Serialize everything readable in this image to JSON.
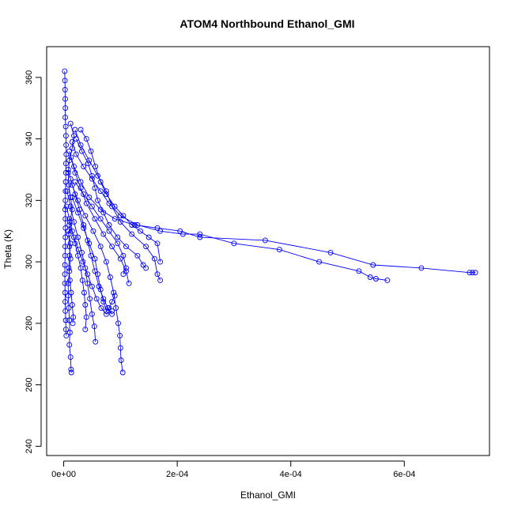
{
  "chart_data": {
    "type": "line",
    "title": "ATOM4 Northbound Ethanol_GMI",
    "xlabel": "Ethanol_GMI",
    "ylabel": "Theta (K)",
    "xlim": [
      -3e-05,
      0.00075
    ],
    "ylim": [
      237,
      370
    ],
    "x_ticks": [
      0,
      0.0002,
      0.0004,
      0.0006
    ],
    "x_tick_labels": [
      "0e+00",
      "2e-04",
      "4e-04",
      "6e-04"
    ],
    "y_ticks": [
      240,
      260,
      280,
      300,
      320,
      340,
      360
    ],
    "y_tick_labels": [
      "240",
      "260",
      "280",
      "300",
      "320",
      "340",
      "360"
    ],
    "grid": false,
    "marker": "open-circle",
    "color": "#0000ff",
    "series": [
      {
        "points": [
          [
            1.8e-06,
            362
          ],
          [
            2.2e-06,
            359
          ],
          [
            2.5e-06,
            356
          ],
          [
            2.8e-06,
            353
          ],
          [
            3e-06,
            350
          ],
          [
            2.8e-06,
            347
          ],
          [
            3.5e-06,
            344
          ],
          [
            4e-06,
            341
          ],
          [
            4.2e-06,
            338
          ],
          [
            4.5e-06,
            335
          ],
          [
            4e-06,
            332
          ],
          [
            3.8e-06,
            329
          ],
          [
            3.5e-06,
            326
          ],
          [
            3.3e-06,
            323
          ],
          [
            3e-06,
            320
          ],
          [
            2.8e-06,
            317
          ],
          [
            3e-06,
            314
          ],
          [
            3.2e-06,
            311
          ],
          [
            3e-06,
            308
          ],
          [
            2.8e-06,
            305
          ],
          [
            2.5e-06,
            302
          ],
          [
            2.2e-06,
            299
          ],
          [
            2e-06,
            296
          ],
          [
            2.2e-06,
            293
          ],
          [
            2.5e-06,
            290
          ],
          [
            2.8e-06,
            287
          ],
          [
            3e-06,
            284
          ],
          [
            3.5e-06,
            281
          ],
          [
            4e-06,
            278
          ],
          [
            4.5e-06,
            276
          ]
        ]
      },
      {
        "points": [
          [
            1.2e-05,
            345
          ],
          [
            1.8e-05,
            341
          ],
          [
            1.5e-05,
            337
          ],
          [
            1e-05,
            333
          ],
          [
            8e-06,
            329
          ],
          [
            9e-06,
            325
          ],
          [
            1.2e-05,
            321
          ],
          [
            1.5e-05,
            317
          ],
          [
            1.1e-05,
            313
          ],
          [
            9e-06,
            309
          ],
          [
            1e-05,
            305
          ],
          [
            1.2e-05,
            301
          ],
          [
            1e-05,
            297
          ],
          [
            8e-06,
            293
          ],
          [
            8e-06,
            289
          ],
          [
            9e-06,
            285
          ],
          [
            1e-05,
            281
          ],
          [
            1.1e-05,
            277
          ],
          [
            1e-05,
            273
          ],
          [
            1.2e-05,
            269
          ],
          [
            1.3e-05,
            265
          ],
          [
            1.35e-05,
            264
          ]
        ]
      },
      {
        "points": [
          [
            2e-05,
            343
          ],
          [
            3e-05,
            338
          ],
          [
            4.5e-05,
            333
          ],
          [
            6e-05,
            328
          ],
          [
            7.5e-05,
            323
          ],
          [
            8.5e-05,
            318
          ],
          [
            0.0001,
            313
          ],
          [
            0.00012,
            309
          ],
          [
            0.000145,
            305
          ],
          [
            0.00016,
            301
          ],
          [
            0.000165,
            296
          ],
          [
            0.00017,
            294
          ]
        ]
      },
      {
        "points": [
          [
            1.5e-05,
            339
          ],
          [
            2.2e-05,
            335
          ],
          [
            3.5e-05,
            331
          ],
          [
            5e-05,
            327
          ],
          [
            6.5e-05,
            323
          ],
          [
            8e-05,
            319
          ],
          [
            0.0001,
            315
          ],
          [
            0.00013,
            312
          ],
          [
            0.00017,
            310
          ],
          [
            0.00021,
            309
          ],
          [
            0.00024,
            309
          ],
          [
            0.0003,
            306
          ],
          [
            0.00038,
            304
          ],
          [
            0.00045,
            300
          ],
          [
            0.00052,
            297
          ],
          [
            0.00054,
            295
          ],
          [
            0.00055,
            294.5
          ],
          [
            0.00057,
            294
          ]
        ]
      },
      {
        "points": [
          [
            1e-05,
            336
          ],
          [
            1.8e-05,
            331
          ],
          [
            3e-05,
            326
          ],
          [
            4.5e-05,
            321
          ],
          [
            6.5e-05,
            317
          ],
          [
            9e-05,
            314
          ],
          [
            0.000125,
            312
          ],
          [
            0.000165,
            311
          ],
          [
            0.000205,
            310
          ],
          [
            0.00024,
            308
          ],
          [
            0.000355,
            307
          ],
          [
            0.00047,
            303
          ],
          [
            0.000545,
            299
          ],
          [
            0.00063,
            298
          ],
          [
            0.000715,
            296.5
          ],
          [
            0.00072,
            296.5
          ],
          [
            0.000725,
            296.5
          ]
        ]
      },
      {
        "points": [
          [
            1.3e-05,
            334
          ],
          [
            2e-05,
            329
          ],
          [
            3e-05,
            324
          ],
          [
            4e-05,
            319
          ],
          [
            5.5e-05,
            314
          ],
          [
            7e-05,
            309
          ],
          [
            8.5e-05,
            305
          ],
          [
            0.0001,
            301
          ],
          [
            0.00011,
            297
          ],
          [
            0.000115,
            293
          ]
        ]
      },
      {
        "points": [
          [
            8e-06,
            330
          ],
          [
            1.5e-05,
            325
          ],
          [
            2.5e-05,
            320
          ],
          [
            3.8e-05,
            315
          ],
          [
            5.2e-05,
            310
          ],
          [
            6.5e-05,
            305
          ],
          [
            7.5e-05,
            300
          ],
          [
            8.2e-05,
            295
          ],
          [
            8.8e-05,
            290
          ],
          [
            9.2e-05,
            285
          ],
          [
            9.6e-05,
            280
          ],
          [
            9.9e-05,
            276
          ],
          [
            0.0001,
            272
          ],
          [
            0.000101,
            268
          ],
          [
            0.000104,
            264
          ]
        ]
      },
      {
        "points": [
          [
            2.2e-05,
            340
          ],
          [
            3.2e-05,
            336
          ],
          [
            4.3e-05,
            332
          ],
          [
            5e-05,
            328
          ],
          [
            5.5e-05,
            324
          ],
          [
            6e-05,
            320
          ],
          [
            7e-05,
            316
          ],
          [
            8e-05,
            312
          ],
          [
            9.5e-05,
            308
          ],
          [
            0.00011,
            305
          ],
          [
            0.00013,
            302
          ],
          [
            0.00014,
            299
          ],
          [
            0.000145,
            298
          ]
        ]
      },
      {
        "points": [
          [
            1.2e-05,
            327
          ],
          [
            2e-05,
            322
          ],
          [
            2.8e-05,
            317
          ],
          [
            3.5e-05,
            312
          ],
          [
            4.2e-05,
            307
          ],
          [
            4.8e-05,
            302
          ],
          [
            5.5e-05,
            297
          ],
          [
            6.2e-05,
            292
          ],
          [
            7e-05,
            288
          ],
          [
            7.8e-05,
            285
          ],
          [
            8.5e-05,
            283
          ]
        ]
      },
      {
        "points": [
          [
            6e-06,
            323
          ],
          [
            1.2e-05,
            318
          ],
          [
            1.8e-05,
            313
          ],
          [
            2.5e-05,
            308
          ],
          [
            3.2e-05,
            303
          ],
          [
            3.8e-05,
            298
          ],
          [
            4.2e-05,
            293
          ],
          [
            4.6e-05,
            288
          ],
          [
            5e-05,
            283
          ],
          [
            5.4e-05,
            279
          ],
          [
            5.6e-05,
            274
          ]
        ]
      },
      {
        "points": [
          [
            3e-05,
            343
          ],
          [
            4e-05,
            340
          ],
          [
            4.8e-05,
            336
          ],
          [
            5.6e-05,
            331
          ],
          [
            6.5e-05,
            326
          ],
          [
            7.5e-05,
            322
          ],
          [
            9e-05,
            318
          ],
          [
            0.000105,
            315
          ],
          [
            0.00012,
            312
          ],
          [
            0.000135,
            310
          ],
          [
            0.00015,
            308
          ],
          [
            0.000165,
            306
          ],
          [
            0.00017,
            300
          ]
        ]
      },
      {
        "points": [
          [
            1.5e-05,
            321
          ],
          [
            2.5e-05,
            316
          ],
          [
            3.5e-05,
            311
          ],
          [
            4.5e-05,
            306
          ],
          [
            5.5e-05,
            301
          ],
          [
            6e-05,
            296
          ],
          [
            6.5e-05,
            291
          ],
          [
            7e-05,
            287
          ],
          [
            7.5e-05,
            284
          ],
          [
            8e-05,
            285
          ],
          [
            8.5e-05,
            287
          ],
          [
            9e-05,
            289
          ]
        ]
      },
      {
        "points": [
          [
            5e-06,
            318
          ],
          [
            1e-05,
            314
          ],
          [
            1.5e-05,
            310
          ],
          [
            2e-05,
            306
          ],
          [
            2.5e-05,
            302
          ],
          [
            3e-05,
            298
          ],
          [
            3.3e-05,
            294
          ],
          [
            3.6e-05,
            290
          ],
          [
            3.8e-05,
            286
          ],
          [
            4e-05,
            282
          ],
          [
            3.8e-05,
            278
          ]
        ]
      },
      {
        "points": [
          [
            2e-05,
            326
          ],
          [
            3.5e-05,
            322
          ],
          [
            5e-05,
            318
          ],
          [
            6.5e-05,
            314
          ],
          [
            8e-05,
            310
          ],
          [
            9.5e-05,
            306
          ],
          [
            0.000105,
            302
          ],
          [
            0.00011,
            298
          ],
          [
            0.000105,
            296
          ]
        ]
      },
      {
        "points": [
          [
            1e-05,
            312
          ],
          [
            1.8e-05,
            308
          ],
          [
            2.6e-05,
            304
          ],
          [
            3.4e-05,
            300
          ],
          [
            4.2e-05,
            296
          ],
          [
            5e-05,
            292
          ],
          [
            5.8e-05,
            288
          ],
          [
            6.6e-05,
            285
          ],
          [
            7.5e-05,
            283
          ],
          [
            8.5e-05,
            284
          ]
        ]
      },
      {
        "points": [
          [
            8e-06,
            310
          ],
          [
            1.2e-05,
            306
          ],
          [
            1e-05,
            302
          ],
          [
            9e-06,
            298
          ],
          [
            1.1e-05,
            294
          ],
          [
            1.3e-05,
            290
          ],
          [
            1.5e-05,
            286
          ],
          [
            1.7e-05,
            282
          ],
          [
            1.6e-05,
            280
          ]
        ]
      }
    ]
  }
}
